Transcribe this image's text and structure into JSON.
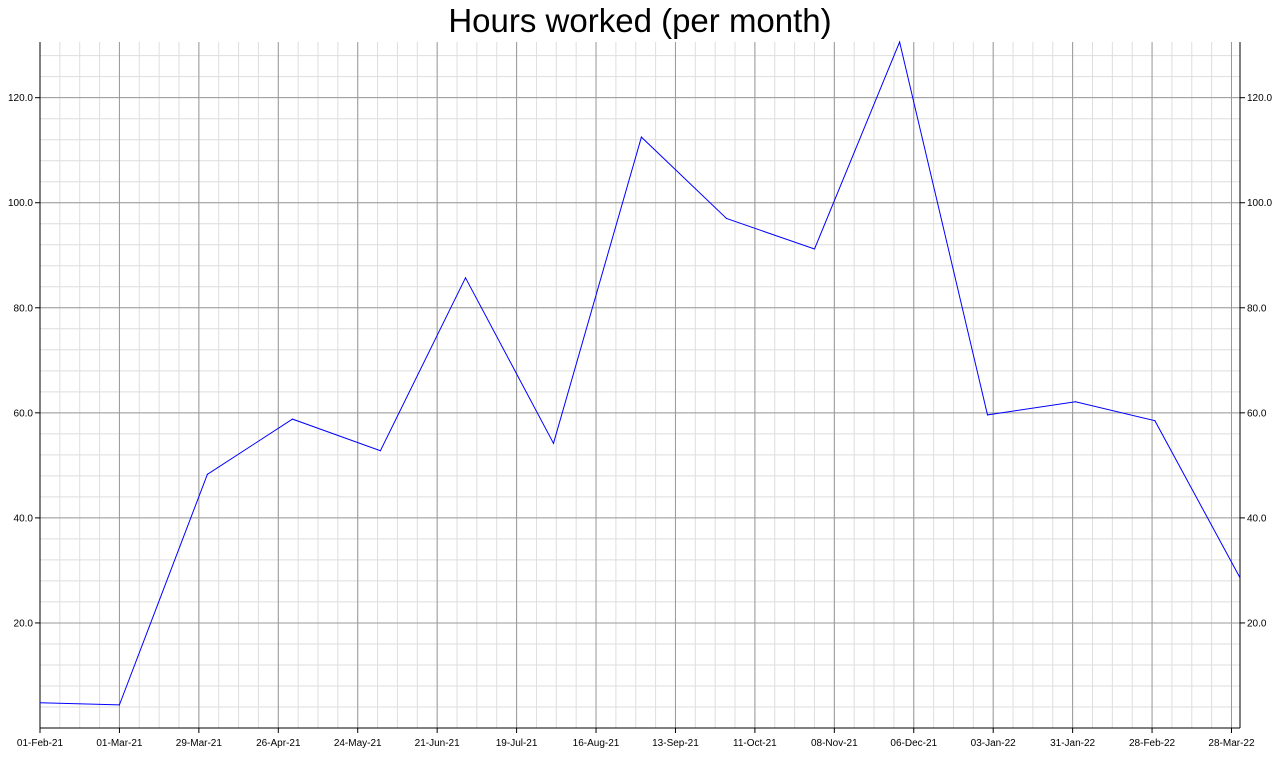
{
  "chart_data": {
    "type": "line",
    "title": "Hours worked (per month)",
    "xlabel": "",
    "ylabel": "",
    "x_ticks": [
      "01-Feb-21",
      "01-Mar-21",
      "29-Mar-21",
      "26-Apr-21",
      "24-May-21",
      "21-Jun-21",
      "19-Jul-21",
      "16-Aug-21",
      "13-Sep-21",
      "11-Oct-21",
      "08-Nov-21",
      "06-Dec-21",
      "03-Jan-22",
      "31-Jan-22",
      "28-Feb-22",
      "28-Mar-22"
    ],
    "y_ticks": [
      "20.0",
      "40.0",
      "60.0",
      "80.0",
      "100.0",
      "120.0"
    ],
    "ylim": [
      0,
      130.6
    ],
    "xlim": [
      "2021-02-01",
      "2022-03-31"
    ],
    "grid": true,
    "series": [
      {
        "color": "#0000ff",
        "points": [
          {
            "x": "2021-02-01",
            "y": 4.8
          },
          {
            "x": "2021-03-01",
            "y": 4.4
          },
          {
            "x": "2021-04-01",
            "y": 48.3
          },
          {
            "x": "2021-05-01",
            "y": 58.8
          },
          {
            "x": "2021-06-01",
            "y": 52.8
          },
          {
            "x": "2021-07-01",
            "y": 85.7
          },
          {
            "x": "2021-08-01",
            "y": 54.2
          },
          {
            "x": "2021-09-01",
            "y": 112.5
          },
          {
            "x": "2021-10-01",
            "y": 97.0
          },
          {
            "x": "2021-11-01",
            "y": 91.2
          },
          {
            "x": "2021-12-01",
            "y": 130.6
          },
          {
            "x": "2022-01-01",
            "y": 59.6
          },
          {
            "x": "2022-02-01",
            "y": 62.1
          },
          {
            "x": "2022-03-01",
            "y": 58.5
          },
          {
            "x": "2022-03-31",
            "y": 28.6
          }
        ]
      }
    ]
  }
}
